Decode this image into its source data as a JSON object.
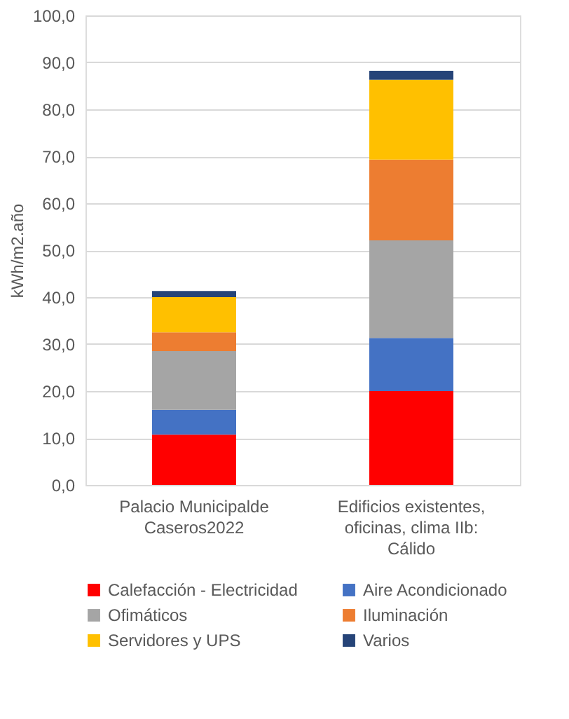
{
  "chart_data": {
    "type": "bar",
    "stacked": true,
    "ylabel": "kWh/m2.año",
    "categories": [
      "Palacio Municipalde Caseros2022",
      "Edificios existentes, oficinas, clima IIb: Cálido"
    ],
    "series": [
      {
        "name": "Calefacción - Electricidad",
        "color": "#ff0000",
        "values": [
          10.7,
          20.0
        ]
      },
      {
        "name": "Aire Acondicionado",
        "color": "#4472c4",
        "values": [
          5.3,
          11.3
        ]
      },
      {
        "name": "Ofimáticos",
        "color": "#a5a5a5",
        "values": [
          12.5,
          20.8
        ]
      },
      {
        "name": "Iluminación",
        "color": "#ed7d31",
        "values": [
          4.0,
          17.2
        ]
      },
      {
        "name": "Servidores y UPS",
        "color": "#ffc000",
        "values": [
          7.5,
          17.0
        ]
      },
      {
        "name": "Varios",
        "color": "#264478",
        "values": [
          1.3,
          1.9
        ]
      }
    ],
    "ylim": [
      0,
      100
    ],
    "yticks": [
      {
        "value": 0,
        "label": "0,0"
      },
      {
        "value": 10,
        "label": "10,0"
      },
      {
        "value": 20,
        "label": "20,0"
      },
      {
        "value": 30,
        "label": "30,0"
      },
      {
        "value": 40,
        "label": "40,0"
      },
      {
        "value": 50,
        "label": "50,0"
      },
      {
        "value": 60,
        "label": "60,0"
      },
      {
        "value": 70,
        "label": "70,0"
      },
      {
        "value": 80,
        "label": "80,0"
      },
      {
        "value": 90,
        "label": "90,0"
      },
      {
        "value": 100,
        "label": "100,0"
      }
    ],
    "grid": "y",
    "legend": "bottom"
  }
}
